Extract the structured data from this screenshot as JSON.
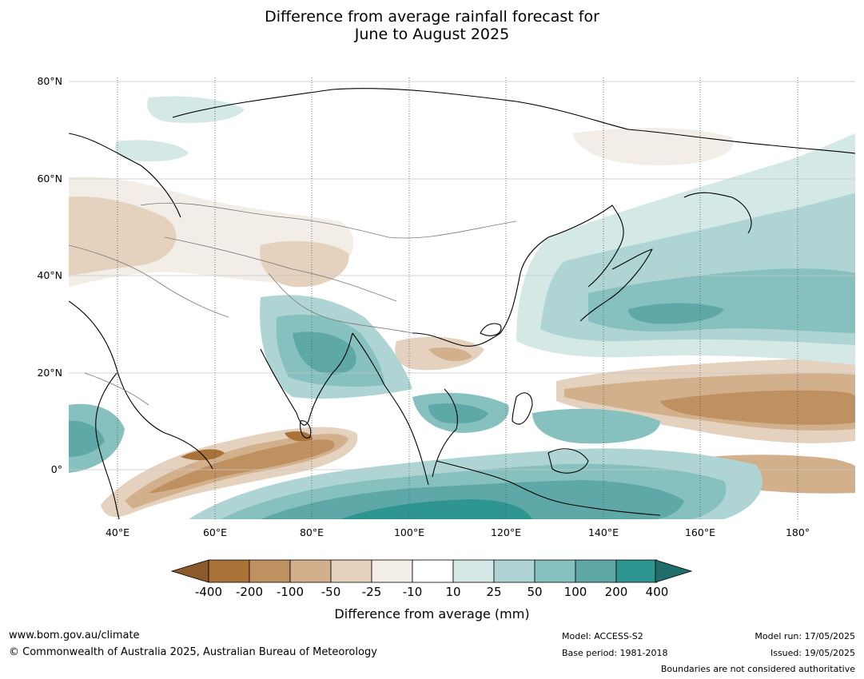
{
  "title": {
    "line1": "Difference from average rainfall forecast for",
    "line2": "June to August 2025"
  },
  "map": {
    "lat_labels": [
      "80°N",
      "60°N",
      "40°N",
      "20°N",
      "0°"
    ],
    "lon_labels": [
      "40°E",
      "60°E",
      "80°E",
      "100°E",
      "120°E",
      "140°E",
      "160°E",
      "180°"
    ],
    "extent": {
      "lon_min": 30,
      "lon_max": 192,
      "lat_min": -10,
      "lat_max": 80
    }
  },
  "colorbar": {
    "ticks": [
      "-400",
      "-200",
      "-100",
      "-50",
      "-25",
      "-10",
      "10",
      "25",
      "50",
      "100",
      "200",
      "400"
    ],
    "colors": {
      "below_min": "#8c5a2b",
      "bins": [
        "#a87238",
        "#bf9060",
        "#d3b08c",
        "#e4d2bf",
        "#f2ede6",
        "#ffffff",
        "#d4e8e6",
        "#aed5d4",
        "#86c0bf",
        "#5ea9a7",
        "#2f9590"
      ],
      "above_max": "#1f6e6b"
    },
    "label": "Difference from average (mm)"
  },
  "footer": {
    "website": "www.bom.gov.au/climate",
    "copyright": "© Commonwealth of Australia 2025, Australian Bureau of Meteorology",
    "model": "Model: ACCESS-S2",
    "base_period": "Base period: 1981-2018",
    "model_run": "Model run: 17/05/2025",
    "issued": "Issued: 19/05/2025",
    "disclaimer": "Boundaries are not considered authoritative"
  }
}
